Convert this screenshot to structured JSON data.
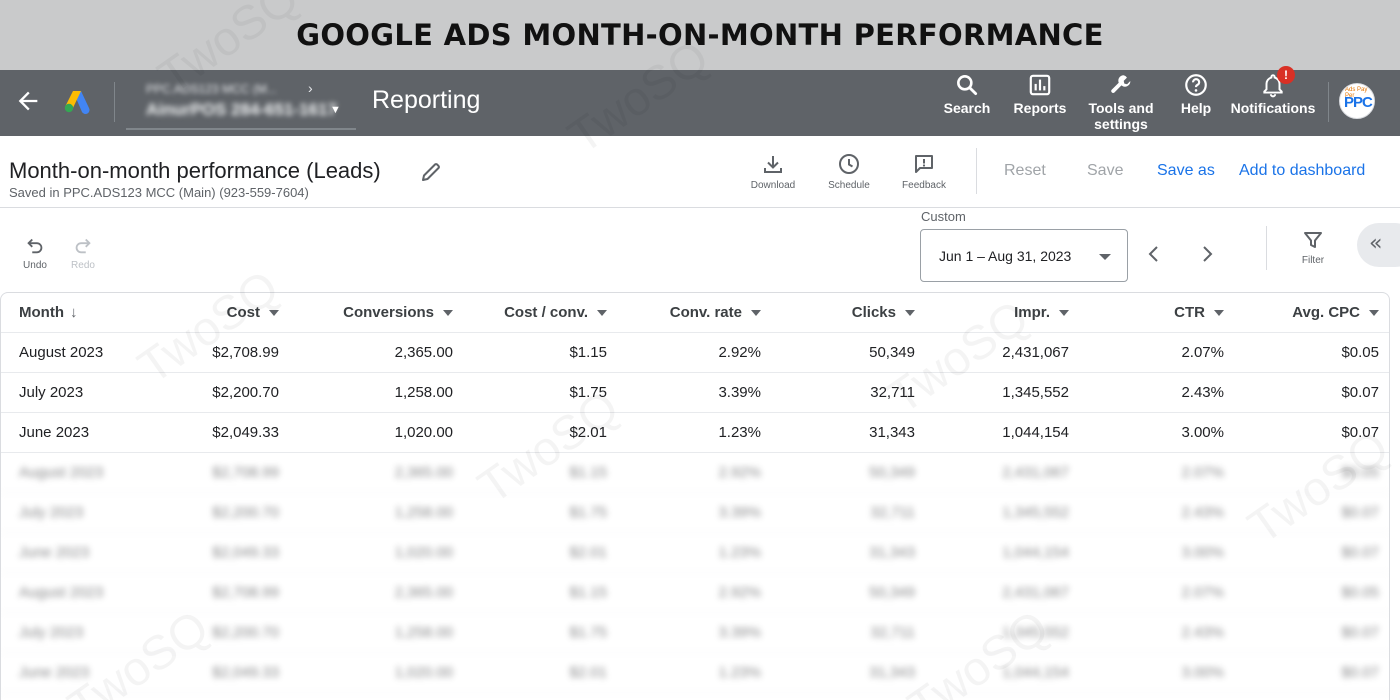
{
  "banner": {
    "title": "GOOGLE ADS MONTH-ON-MONTH PERFORMANCE"
  },
  "appbar": {
    "account_line1": "PPC.ADS123 MCC (M...",
    "account_name": "AinurPOS  284-651-1617",
    "title": "Reporting",
    "nav": [
      {
        "label": "Search",
        "icon": "search-icon"
      },
      {
        "label": "Reports",
        "icon": "reports-icon"
      },
      {
        "label": "Tools and\nsettings",
        "icon": "wrench-icon"
      },
      {
        "label": "Help",
        "icon": "help-icon"
      },
      {
        "label": "Notifications",
        "icon": "bell-icon"
      }
    ],
    "notification_badge": "!",
    "avatar_text": "PPC",
    "avatar_top": "Ads Pay Per"
  },
  "report": {
    "title": "Month-on-month performance (Leads)",
    "subtitle": "Saved in PPC.ADS123 MCC (Main) (923-559-7604)",
    "tools": [
      {
        "label": "Download",
        "icon": "download-icon"
      },
      {
        "label": "Schedule",
        "icon": "clock-icon"
      },
      {
        "label": "Feedback",
        "icon": "feedback-icon"
      }
    ],
    "reset_label": "Reset",
    "save_label": "Save",
    "save_as_label": "Save as",
    "add_dashboard_label": "Add to dashboard"
  },
  "toolbar": {
    "undo_label": "Undo",
    "redo_label": "Redo",
    "range_caption": "Custom",
    "range_value": "Jun 1 – Aug 31, 2023",
    "filter_label": "Filter"
  },
  "table": {
    "columns": [
      "Month",
      "Cost",
      "Conversions",
      "Cost / conv.",
      "Conv. rate",
      "Clicks",
      "Impr.",
      "CTR",
      "Avg. CPC"
    ],
    "rows": [
      [
        "August 2023",
        "$2,708.99",
        "2,365.00",
        "$1.15",
        "2.92%",
        "50,349",
        "2,431,067",
        "2.07%",
        "$0.05"
      ],
      [
        "July 2023",
        "$2,200.70",
        "1,258.00",
        "$1.75",
        "3.39%",
        "32,711",
        "1,345,552",
        "2.43%",
        "$0.07"
      ],
      [
        "June 2023",
        "$2,049.33",
        "1,020.00",
        "$2.01",
        "1.23%",
        "31,343",
        "1,044,154",
        "3.00%",
        "$0.07"
      ]
    ],
    "blurred_rows": [
      [
        "August 2023",
        "$2,708.99",
        "2,365.00",
        "$1.15",
        "2.92%",
        "50,349",
        "2,431,067",
        "2.07%",
        "$0.05"
      ],
      [
        "July 2023",
        "$2,200.70",
        "1,258.00",
        "$1.75",
        "3.39%",
        "32,711",
        "1,345,552",
        "2.43%",
        "$0.07"
      ],
      [
        "June 2023",
        "$2,049.33",
        "1,020.00",
        "$2.01",
        "1.23%",
        "31,343",
        "1,044,154",
        "3.00%",
        "$0.07"
      ],
      [
        "August 2023",
        "$2,708.99",
        "2,365.00",
        "$1.15",
        "2.92%",
        "50,349",
        "2,431,067",
        "2.07%",
        "$0.05"
      ],
      [
        "July 2023",
        "$2,200.70",
        "1,258.00",
        "$1.75",
        "3.39%",
        "32,711",
        "1,345,552",
        "2.43%",
        "$0.07"
      ],
      [
        "June 2023",
        "$2,049.33",
        "1,020.00",
        "$2.01",
        "1.23%",
        "31,343",
        "1,044,154",
        "3.00%",
        "$0.07"
      ]
    ]
  },
  "watermark": "TwoSQ",
  "colors": {
    "banner_bg": "#c9cacb",
    "appbar_bg": "#5f6368",
    "link_blue": "#1a73e8",
    "badge_red": "#d93025"
  }
}
